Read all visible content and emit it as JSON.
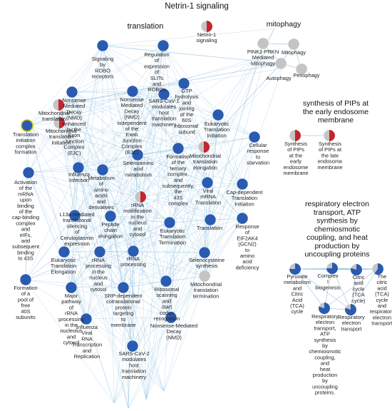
{
  "title": "Netrin-1 signaling",
  "colors": {
    "blue": "#2a5bb0",
    "red": "#c1272d",
    "grey": "#c4c4c4",
    "edge": "#8cc0e2",
    "highlight": "#c8c800"
  },
  "groups": [
    {
      "id": "translation",
      "label": "translation"
    },
    {
      "id": "netrin",
      "label": ""
    },
    {
      "id": "mitophagy",
      "label": "mitophagy"
    },
    {
      "id": "pips",
      "label": "synthesis of PIPs at\nthe early endosome\nmembrane"
    },
    {
      "id": "resp",
      "label": "respiratory electron\ntransport, ATP\nsynthesis by\nchemiosmotic\ncoupling, and heat\nproduction by\nuncoupling proteins"
    }
  ],
  "nodes": [
    {
      "id": "netrin1",
      "group": "netrin",
      "label": "Netrin-1\nsignaling",
      "pie": 0.5,
      "color": "red"
    },
    {
      "id": "pink1",
      "group": "mitophagy",
      "label": "PINK1-PRKN\nMediated\nMitophagy",
      "pie": 0.25,
      "color": "grey"
    },
    {
      "id": "mitoph",
      "group": "mitophagy",
      "label": "Mitophagy",
      "pie": 0.25,
      "color": "grey"
    },
    {
      "id": "pexoph",
      "group": "mitophagy",
      "label": "Pexophagy",
      "pie": 0.25,
      "color": "grey"
    },
    {
      "id": "autoph",
      "group": "mitophagy",
      "label": "Autophagy",
      "pie": 0.3,
      "color": "grey"
    },
    {
      "id": "pip_early",
      "group": "pips",
      "label": "Synthesis\nof PIPs\nat the\nearly\nendosome\nmembrane",
      "pie": 0.5,
      "color": "red"
    },
    {
      "id": "pip_late",
      "group": "pips",
      "label": "Synthesis\nof PIPs at\nthe late\nendosome\nmembrane",
      "pie": 0.5,
      "color": "red"
    },
    {
      "id": "pyruvate",
      "group": "resp",
      "label": "Pyruvate\nmetabolism\nand\nCitric\nAcid\n(TCA)\ncycle",
      "pie": 0.75,
      "color": "blue"
    },
    {
      "id": "complex1",
      "group": "resp",
      "label": "Complex\nI\nbiogenesis",
      "pie": 0.75,
      "color": "blue"
    },
    {
      "id": "citric",
      "group": "resp",
      "label": "Citric\nacid\ncycle\n(TCA\ncycle)",
      "pie": 0.8,
      "color": "blue"
    },
    {
      "id": "tca_resp",
      "group": "resp",
      "label": "The\ncitric\nacid\n(TCA)\ncycle\nand\nrespiratory\nelectron\ntransport",
      "pie": 0.6,
      "color": "blue"
    },
    {
      "id": "resp_atp",
      "group": "resp",
      "label": "Respiratory\nelectron\ntransport,\nATP\nsynthesis\nby\nchemiosmotic\ncoupling,\nand\nheat\nproduction\nby\nuncoupling\nproteins.",
      "pie": 0.8,
      "color": "blue"
    },
    {
      "id": "resp_et",
      "group": "resp",
      "label": "Respiratory\nelectron\ntransport",
      "pie": 0.8,
      "color": "blue"
    },
    {
      "id": "robo",
      "group": "translation",
      "label": "Signaling\nby\nROBO\nreceptors",
      "pie": 1,
      "color": "blue"
    },
    {
      "id": "slits",
      "group": "translation",
      "label": "Regulation\nof\nexpression\nof\nSLITs\nand\nROBOs",
      "pie": 1,
      "color": "blue"
    },
    {
      "id": "nmd_ejc",
      "group": "translation",
      "label": "Nonsense\nMediated\nDecay\n(NMD)\nenhanced\nby the\nExon\nJunction\nComplex\n(EJC)",
      "pie": 1,
      "color": "blue"
    },
    {
      "id": "nmd_indep",
      "group": "translation",
      "label": "Nonsense\nMediated\nDecay\n(NMD)\nindependent\nof the\nExon\nJunction\nComplex\n(EJC)",
      "pie": 1,
      "color": "blue"
    },
    {
      "id": "sarscov1",
      "group": "translation",
      "label": "SARS-CoV-1\nmodulates\nhost\ntranslation\nmachinery",
      "pie": 1,
      "color": "blue"
    },
    {
      "id": "gtp",
      "group": "translation",
      "label": "GTP\nhydrolysis\nand\njoining\nof the\n60S\nribosomal\nsubunit",
      "pie": 1,
      "color": "blue"
    },
    {
      "id": "mito_transl",
      "group": "translation",
      "label": "Mitochondrial\ntranslation",
      "pie": 0.5,
      "color": "red"
    },
    {
      "id": "mito_init",
      "group": "translation",
      "label": "Mitochondrial\ntranslation\ninitiation",
      "pie": 0.5,
      "color": "red"
    },
    {
      "id": "eukinit",
      "group": "translation",
      "label": "Eukaryotic\nTranslation\nInitiation",
      "pie": 1,
      "color": "blue"
    },
    {
      "id": "transinit",
      "group": "translation",
      "label": "Translation\ninitiation\ncomplex\nformation",
      "pie": 1,
      "color": "blue",
      "highlight": true
    },
    {
      "id": "ternary",
      "group": "translation",
      "label": "Formation\nof the\nternary\ncomplex,\nand\nsubsequently,\nthe\n43S\ncomplex",
      "pie": 1,
      "color": "blue"
    },
    {
      "id": "selenoamino",
      "group": "translation",
      "label": "Selenoamino\nacid\nmetabolism",
      "pie": 1,
      "color": "blue"
    },
    {
      "id": "mito_elong",
      "group": "translation",
      "label": "Mitochondrial\ntranslation\nelongation",
      "pie": 0.5,
      "color": "red"
    },
    {
      "id": "cellular",
      "group": "translation",
      "label": "Cellular\nresponse\nto\nstarvation",
      "pie": 1,
      "color": "blue"
    },
    {
      "id": "activation",
      "group": "translation",
      "label": "Activation\nof the\nmRNA\nupon\nbinding\nof the\ncap-binding\ncomplex\nand\neIFs,\nand\nsubsequent\nbinding\nto 43S",
      "pie": 1,
      "color": "blue"
    },
    {
      "id": "influenza",
      "group": "translation",
      "label": "Influenza\nInfection",
      "pie": 1,
      "color": "blue"
    },
    {
      "id": "metab_aa",
      "group": "translation",
      "label": "Metabolism\nof\namino\nacids\nand\nderivatives",
      "pie": 1,
      "color": "blue"
    },
    {
      "id": "viral_mrna",
      "group": "translation",
      "label": "Viral\nmRNA\nTranslation",
      "pie": 1,
      "color": "blue"
    },
    {
      "id": "capdep",
      "group": "translation",
      "label": "Cap-dependent\nTranslation\nInitiation",
      "pie": 1,
      "color": "blue"
    },
    {
      "id": "l13a",
      "group": "translation",
      "label": "L13a-mediated\ntranslational\nsilencing\nof\nCeruloplasmin\nexpression",
      "pie": 1,
      "color": "blue"
    },
    {
      "id": "rrna_mod",
      "group": "translation",
      "label": "rRNA\nmodification\nin the\nnucleus\nand\ncytosol",
      "pie": 0.5,
      "color": "red"
    },
    {
      "id": "peptide",
      "group": "translation",
      "label": "Peptide\nchain\nelongation",
      "pie": 1,
      "color": "blue"
    },
    {
      "id": "translation_n",
      "group": "translation",
      "label": "Translation",
      "pie": 1,
      "color": "blue"
    },
    {
      "id": "eif2ak4",
      "group": "translation",
      "label": "Response\nof\nEIF2AK4\n(GCN2)\nto\namino\nacid\ndeficiency",
      "pie": 1,
      "color": "blue"
    },
    {
      "id": "eukterm",
      "group": "translation",
      "label": "Eukaryotic\nTranslation\nTermination",
      "pie": 1,
      "color": "blue"
    },
    {
      "id": "eukelong",
      "group": "translation",
      "label": "Eukaryotic\nTranslation\nElongation",
      "pie": 1,
      "color": "blue"
    },
    {
      "id": "rrna_proc_nc",
      "group": "translation",
      "label": "rRNA\nprocessing\nin the\nnucleus\nand\ncytosol",
      "pie": 1,
      "color": "blue"
    },
    {
      "id": "rrna_proc",
      "group": "translation",
      "label": "rRNA\nprocessing",
      "pie": 1,
      "color": "blue"
    },
    {
      "id": "selenocys",
      "group": "translation",
      "label": "Selenocysteine\nsynthesis",
      "pie": 1,
      "color": "blue"
    },
    {
      "id": "pool40s",
      "group": "translation",
      "label": "Formation\nof a\npool of\nfree\n40S\nsubunits",
      "pie": 1,
      "color": "blue"
    },
    {
      "id": "major_path",
      "group": "translation",
      "label": "Major\npathway\nof\nrRNA\nprocessing\nin the\nnucleolus\nand\ncytosol",
      "pie": 1,
      "color": "blue"
    },
    {
      "id": "srp",
      "group": "translation",
      "label": "SRP-dependent\ncotranslational\nprotein\ntargeting\nto\nmembrane",
      "pie": 1,
      "color": "blue"
    },
    {
      "id": "ribo_scan",
      "group": "translation",
      "label": "Ribosomal\nscanning\nand\nstart\ncodon\nrecognition",
      "pie": 1,
      "color": "blue"
    },
    {
      "id": "mito_term",
      "group": "translation",
      "label": "Mitochondrial\ntranslation\ntermination",
      "pie": 0.3,
      "color": "grey"
    },
    {
      "id": "flu_viral",
      "group": "translation",
      "label": "Influenza\nViral\nRNA\nTranscription\nand\nReplication",
      "pie": 1,
      "color": "blue"
    },
    {
      "id": "nmd",
      "group": "translation",
      "label": "Nonsense-Mediated\nDecay\n(NMD)",
      "pie": 1,
      "color": "blue"
    },
    {
      "id": "sarscov2",
      "group": "translation",
      "label": "SARS-CoV-2\nmodulates\nhost\ntranslation\nmachinery",
      "pie": 1,
      "color": "blue"
    }
  ],
  "edges": [
    [
      "pink1",
      "mitoph"
    ],
    [
      "pink1",
      "autoph"
    ],
    [
      "mitoph",
      "autoph"
    ],
    [
      "mitoph",
      "pexoph"
    ],
    [
      "autoph",
      "pexoph"
    ],
    [
      "pip_early",
      "pip_late"
    ],
    [
      "pyruvate",
      "complex1"
    ],
    [
      "pyruvate",
      "citric"
    ],
    [
      "pyruvate",
      "tca_resp"
    ],
    [
      "pyruvate",
      "resp_atp"
    ],
    [
      "pyruvate",
      "resp_et"
    ],
    [
      "complex1",
      "citric"
    ],
    [
      "complex1",
      "tca_resp"
    ],
    [
      "complex1",
      "resp_atp"
    ],
    [
      "complex1",
      "resp_et"
    ],
    [
      "citric",
      "tca_resp"
    ],
    [
      "citric",
      "resp_et"
    ],
    [
      "tca_resp",
      "resp_atp"
    ],
    [
      "tca_resp",
      "resp_et"
    ],
    [
      "resp_atp",
      "resp_et"
    ],
    [
      "autoph",
      "mito_transl"
    ],
    [
      "autoph",
      "mito_elong"
    ],
    [
      "autoph",
      "robo"
    ],
    [
      "pink1",
      "translation_n"
    ]
  ]
}
